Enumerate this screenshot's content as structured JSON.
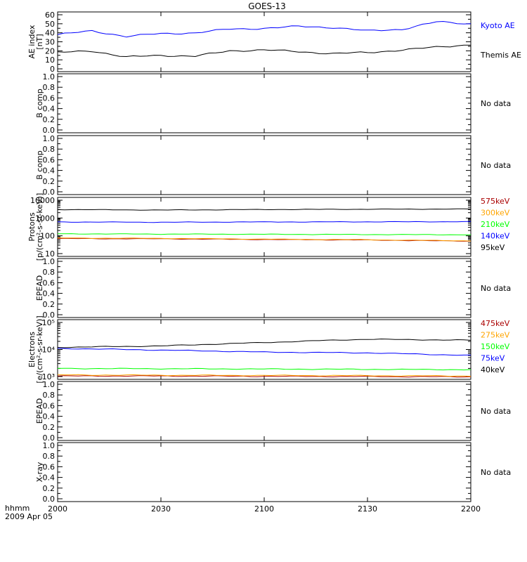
{
  "title": "GOES-13",
  "time_axis": {
    "ticks": [
      "2000",
      "2030",
      "2100",
      "2130",
      "2200"
    ],
    "left_label": "hhmm",
    "date_label": "2009 Apr 05"
  },
  "no_data_text": "No data",
  "chart_data": [
    {
      "id": "ae",
      "type": "line",
      "ylabel_lines": [
        "AE index",
        "[nT]"
      ],
      "ylim": [
        0,
        60
      ],
      "yticks": [
        "0",
        "10",
        "20",
        "30",
        "40",
        "50",
        "60"
      ],
      "x": [
        "2000",
        "2010",
        "2020",
        "2030",
        "2040",
        "2050",
        "2100",
        "2110",
        "2120",
        "2130",
        "2140",
        "2150",
        "2200"
      ],
      "series": [
        {
          "name": "Kyoto AE",
          "color": "#0000ff",
          "values": [
            38,
            42,
            36,
            39,
            40,
            44,
            45,
            47,
            46,
            42,
            44,
            52,
            50
          ]
        },
        {
          "name": "Themis AE",
          "color": "#000000",
          "values": [
            18,
            20,
            13,
            15,
            14,
            20,
            21,
            19,
            17,
            18,
            21,
            24,
            27
          ]
        }
      ]
    },
    {
      "id": "bcomp1",
      "type": "line",
      "ylabel_lines": [
        "B comp"
      ],
      "ylim": [
        0,
        1
      ],
      "yticks": [
        "0.0",
        "0.2",
        "0.4",
        "0.6",
        "0.8",
        "1.0"
      ],
      "no_data": true
    },
    {
      "id": "bcomp2",
      "type": "line",
      "ylabel_lines": [
        "B comp"
      ],
      "ylim": [
        0,
        1
      ],
      "yticks": [
        "0.0",
        "0.2",
        "0.4",
        "0.6",
        "0.8",
        "1.0"
      ],
      "no_data": true
    },
    {
      "id": "protons",
      "type": "line",
      "log": true,
      "ylabel_lines": [
        "Protons",
        "[p/(cm²-s-sr-keV)]"
      ],
      "ylim": [
        10,
        10000
      ],
      "yticks": [
        "10",
        "100",
        "1000",
        "10000"
      ],
      "x": [
        "2000",
        "2030",
        "2100",
        "2130",
        "2200"
      ],
      "series": [
        {
          "name": "575keV",
          "color": "#aa0000",
          "values": [
            70,
            68,
            62,
            58,
            50
          ]
        },
        {
          "name": "300keV",
          "color": "#ffa500",
          "values": [
            75,
            72,
            65,
            60,
            52
          ]
        },
        {
          "name": "210keV",
          "color": "#00ff00",
          "values": [
            130,
            125,
            122,
            118,
            115
          ]
        },
        {
          "name": "140keV",
          "color": "#0000ff",
          "values": [
            600,
            580,
            600,
            610,
            620
          ]
        },
        {
          "name": "95keV",
          "color": "#000000",
          "values": [
            3000,
            2800,
            3000,
            3100,
            3200
          ]
        }
      ]
    },
    {
      "id": "epead1",
      "type": "line",
      "ylabel_lines": [
        "EPEAD"
      ],
      "ylim": [
        0,
        1
      ],
      "yticks": [
        "0.0",
        "0.2",
        "0.4",
        "0.6",
        "0.8",
        "1.0"
      ],
      "no_data": true
    },
    {
      "id": "electrons",
      "type": "line",
      "log": true,
      "ylabel_lines": [
        "Electrons",
        "[e/(cm²-s-sr-keV)]"
      ],
      "ylim": [
        1000,
        100000
      ],
      "yticks": [
        "10³",
        "10⁴",
        "10⁵"
      ],
      "x": [
        "2000",
        "2030",
        "2100",
        "2130",
        "2200"
      ],
      "series": [
        {
          "name": "475keV",
          "color": "#aa0000",
          "values": [
            1050,
            1050,
            1020,
            1000,
            980
          ]
        },
        {
          "name": "275keV",
          "color": "#ffa500",
          "values": [
            1150,
            1120,
            1100,
            1080,
            1050
          ]
        },
        {
          "name": "150keV",
          "color": "#00ff00",
          "values": [
            2000,
            1950,
            1900,
            1850,
            1800
          ]
        },
        {
          "name": "75keV",
          "color": "#0000ff",
          "values": [
            11000,
            9500,
            8000,
            7500,
            6000
          ]
        },
        {
          "name": "40keV",
          "color": "#000000",
          "values": [
            12000,
            13500,
            18000,
            24000,
            22000
          ]
        }
      ]
    },
    {
      "id": "epead2",
      "type": "line",
      "ylabel_lines": [
        "EPEAD"
      ],
      "ylim": [
        0,
        1
      ],
      "yticks": [
        "0.0",
        "0.2",
        "0.4",
        "0.6",
        "0.8",
        "1.0"
      ],
      "no_data": true
    },
    {
      "id": "xray",
      "type": "line",
      "ylabel_lines": [
        "X-ray"
      ],
      "ylim": [
        0,
        1
      ],
      "yticks": [
        "0.0",
        "0.2",
        "0.4",
        "0.6",
        "0.8",
        "1.0"
      ],
      "no_data": true
    }
  ]
}
